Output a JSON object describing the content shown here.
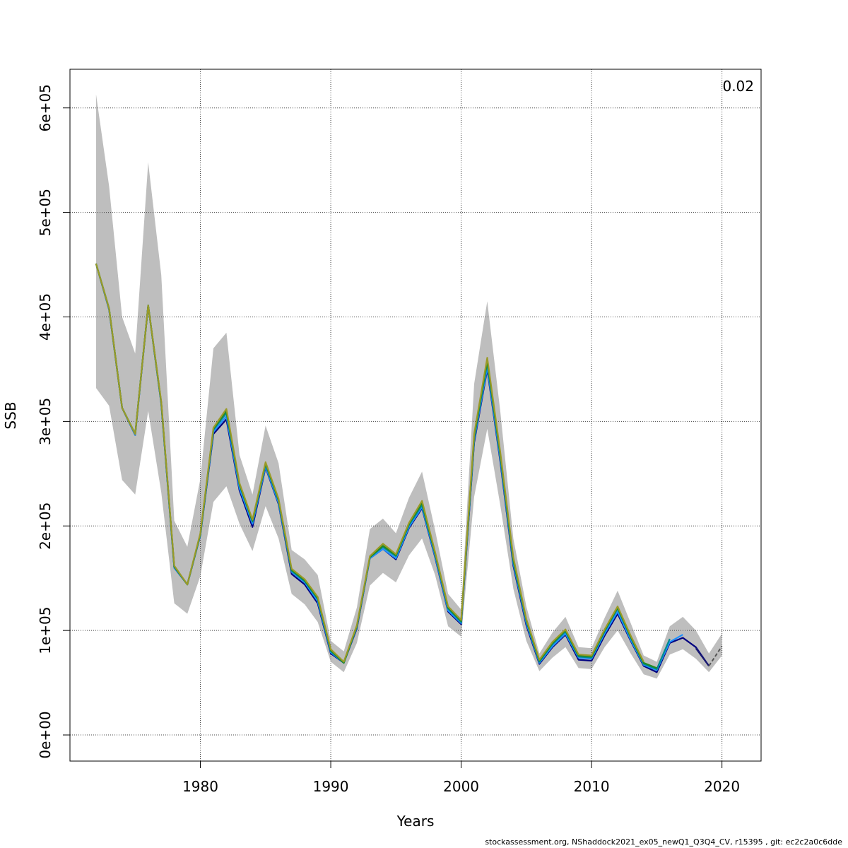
{
  "chart_data": {
    "type": "line",
    "title": "",
    "xlabel": "Years",
    "ylabel": "SSB",
    "corner_label": "0.02",
    "xlim": [
      1970,
      2023
    ],
    "ylim": [
      -25000,
      637000
    ],
    "x_ticks": [
      1980,
      1990,
      2000,
      2010,
      2020
    ],
    "y_ticks": [
      0,
      100000,
      200000,
      300000,
      400000,
      500000,
      600000
    ],
    "y_tick_labels": [
      "0e+00",
      "1e+05",
      "2e+05",
      "3e+05",
      "4e+05",
      "5e+05",
      "6e+05"
    ],
    "grid": true,
    "band_color": "#bebebe",
    "band": {
      "x": [
        1972,
        1973,
        1974,
        1975,
        1976,
        1977,
        1978,
        1979,
        1980,
        1981,
        1982,
        1983,
        1984,
        1985,
        1986,
        1987,
        1988,
        1989,
        1990,
        1991,
        1992,
        1993,
        1994,
        1995,
        1996,
        1997,
        1998,
        1999,
        2000,
        2001,
        2002,
        2003,
        2004,
        2005,
        2006,
        2007,
        2008,
        2009,
        2010,
        2011,
        2012,
        2013,
        2014,
        2015,
        2016,
        2017,
        2018,
        2019,
        2020
      ],
      "upper": [
        613000,
        525000,
        400000,
        365000,
        548000,
        440000,
        205000,
        180000,
        245000,
        370000,
        385000,
        268000,
        230000,
        296000,
        260000,
        177000,
        168000,
        153000,
        90000,
        80000,
        122000,
        197000,
        207000,
        193000,
        227000,
        252000,
        196000,
        135000,
        120000,
        336000,
        415000,
        310000,
        188000,
        123000,
        78000,
        98000,
        113000,
        84000,
        83000,
        112000,
        138000,
        107000,
        76000,
        70000,
        104000,
        113000,
        100000,
        78000,
        97000
      ],
      "lower": [
        332000,
        315000,
        244000,
        230000,
        310000,
        232000,
        126000,
        116000,
        152000,
        223000,
        238000,
        202000,
        176000,
        219000,
        188000,
        135000,
        125000,
        108000,
        70000,
        60000,
        88000,
        143000,
        155000,
        146000,
        172000,
        188000,
        153000,
        104000,
        94000,
        228000,
        293000,
        220000,
        140000,
        90000,
        61000,
        74000,
        84000,
        64000,
        63000,
        84000,
        100000,
        78000,
        58000,
        54000,
        77000,
        82000,
        73000,
        60000,
        76000
      ]
    },
    "series": [
      {
        "color": "#000080",
        "x": [
          1972,
          1973,
          1974,
          1975,
          1976,
          1977,
          1978,
          1979,
          1980,
          1981,
          1982,
          1983,
          1984,
          1985,
          1986,
          1987,
          1988,
          1989,
          1990,
          1991,
          1992,
          1993,
          1994,
          1995,
          1996,
          1997,
          1998,
          1999,
          2000,
          2001,
          2002,
          2003,
          2004,
          2005,
          2006,
          2007,
          2008,
          2009,
          2010,
          2011,
          2012,
          2013,
          2014,
          2015,
          2016,
          2017,
          2018,
          2019
        ],
        "values": [
          451000,
          407000,
          313000,
          287000,
          411000,
          317000,
          160000,
          144000,
          191000,
          288000,
          302000,
          234000,
          199000,
          256000,
          221000,
          154000,
          144000,
          126000,
          78000,
          69000,
          102000,
          169000,
          178000,
          168000,
          198000,
          217000,
          170000,
          118000,
          106000,
          280000,
          350000,
          262000,
          162000,
          105000,
          68000,
          84000,
          96000,
          72000,
          71000,
          95000,
          116000,
          90000,
          66000,
          60000,
          88000,
          93000,
          84000,
          66000
        ]
      },
      {
        "color": "#1e90ff",
        "x": [
          1972,
          1973,
          1974,
          1975,
          1976,
          1977,
          1978,
          1979,
          1980,
          1981,
          1982,
          1983,
          1984,
          1985,
          1986,
          1987,
          1988,
          1989,
          1990,
          1991,
          1992,
          1993,
          1994,
          1995,
          1996,
          1997,
          1998,
          1999,
          2000,
          2001,
          2002,
          2003,
          2004,
          2005,
          2006,
          2007,
          2008,
          2009,
          2010,
          2011,
          2012,
          2013,
          2014,
          2015,
          2016,
          2017
        ],
        "values": [
          451000,
          407000,
          313000,
          287000,
          411000,
          317000,
          160000,
          144000,
          191000,
          290000,
          305000,
          236000,
          202000,
          257000,
          222000,
          156000,
          146000,
          128000,
          79000,
          69000,
          103000,
          169000,
          178000,
          169000,
          199000,
          218000,
          171000,
          119000,
          107000,
          282000,
          352000,
          264000,
          164000,
          107000,
          69000,
          85000,
          97000,
          74000,
          73000,
          97000,
          118000,
          91000,
          67000,
          62000,
          89000,
          96000
        ]
      },
      {
        "color": "#008b8b",
        "x": [
          1972,
          1973,
          1974,
          1975,
          1976,
          1977,
          1978,
          1979,
          1980,
          1981,
          1982,
          1983,
          1984,
          1985,
          1986,
          1987,
          1988,
          1989,
          1990,
          1991,
          1992,
          1993,
          1994,
          1995,
          1996,
          1997,
          1998,
          1999,
          2000,
          2001,
          2002,
          2003,
          2004,
          2005,
          2006,
          2007,
          2008,
          2009,
          2010,
          2011,
          2012,
          2013,
          2014,
          2015,
          2016
        ],
        "values": [
          451000,
          408000,
          313000,
          288000,
          411000,
          318000,
          161000,
          144000,
          192000,
          292000,
          308000,
          239000,
          204000,
          259000,
          224000,
          157000,
          147000,
          130000,
          80000,
          69000,
          104000,
          170000,
          180000,
          171000,
          201000,
          220000,
          173000,
          121000,
          108000,
          284000,
          356000,
          267000,
          166000,
          109000,
          70000,
          87000,
          99000,
          75000,
          74000,
          99000,
          121000,
          93000,
          68000,
          63000,
          92000
        ]
      },
      {
        "color": "#228b22",
        "x": [
          1972,
          1973,
          1974,
          1975,
          1976,
          1977,
          1978,
          1979,
          1980,
          1981,
          1982,
          1983,
          1984,
          1985,
          1986,
          1987,
          1988,
          1989,
          1990,
          1991,
          1992,
          1993,
          1994,
          1995,
          1996,
          1997,
          1998,
          1999,
          2000,
          2001,
          2002,
          2003,
          2004,
          2005,
          2006,
          2007,
          2008,
          2009,
          2010,
          2011,
          2012,
          2013,
          2014,
          2015
        ],
        "values": [
          451000,
          408000,
          313000,
          288000,
          411000,
          318000,
          161000,
          144000,
          192000,
          293000,
          310000,
          240000,
          205000,
          260000,
          225000,
          158000,
          148000,
          131000,
          81000,
          69000,
          104000,
          170000,
          181000,
          172000,
          202000,
          222000,
          174000,
          122000,
          109000,
          286000,
          358000,
          269000,
          168000,
          110000,
          71000,
          88000,
          100000,
          76000,
          75000,
          100000,
          122000,
          94000,
          69000,
          64000
        ]
      },
      {
        "color": "#9a9a28",
        "x": [
          1972,
          1973,
          1974,
          1975,
          1976,
          1977,
          1978,
          1979,
          1980,
          1981,
          1982,
          1983,
          1984,
          1985,
          1986,
          1987,
          1988,
          1989,
          1990,
          1991,
          1992,
          1993,
          1994,
          1995,
          1996,
          1997,
          1998,
          1999,
          2000,
          2001,
          2002,
          2003,
          2004,
          2005,
          2006,
          2007,
          2008,
          2009,
          2010,
          2011,
          2012,
          2013,
          2014
        ],
        "values": [
          451000,
          408000,
          313000,
          288000,
          411000,
          319000,
          162000,
          144000,
          193000,
          294000,
          312000,
          241000,
          206000,
          261000,
          226000,
          159000,
          149000,
          132000,
          82000,
          70000,
          105000,
          171000,
          183000,
          173000,
          203000,
          224000,
          175000,
          123000,
          110000,
          288000,
          361000,
          271000,
          170000,
          111000,
          72000,
          89000,
          101000,
          77000,
          76000,
          101000,
          123000,
          95000,
          70000
        ]
      },
      {
        "color": "#191970",
        "x": [
          2018,
          2019
        ],
        "values": [
          83000,
          66000
        ]
      },
      {
        "color": "#555555",
        "dashed": true,
        "x": [
          2019,
          2020
        ],
        "values": [
          66000,
          85000
        ]
      }
    ]
  },
  "footer": "stockassessment.org, NShaddock2021_ex05_newQ1_Q3Q4_CV, r15395 , git: ec2c2a0c6dde"
}
